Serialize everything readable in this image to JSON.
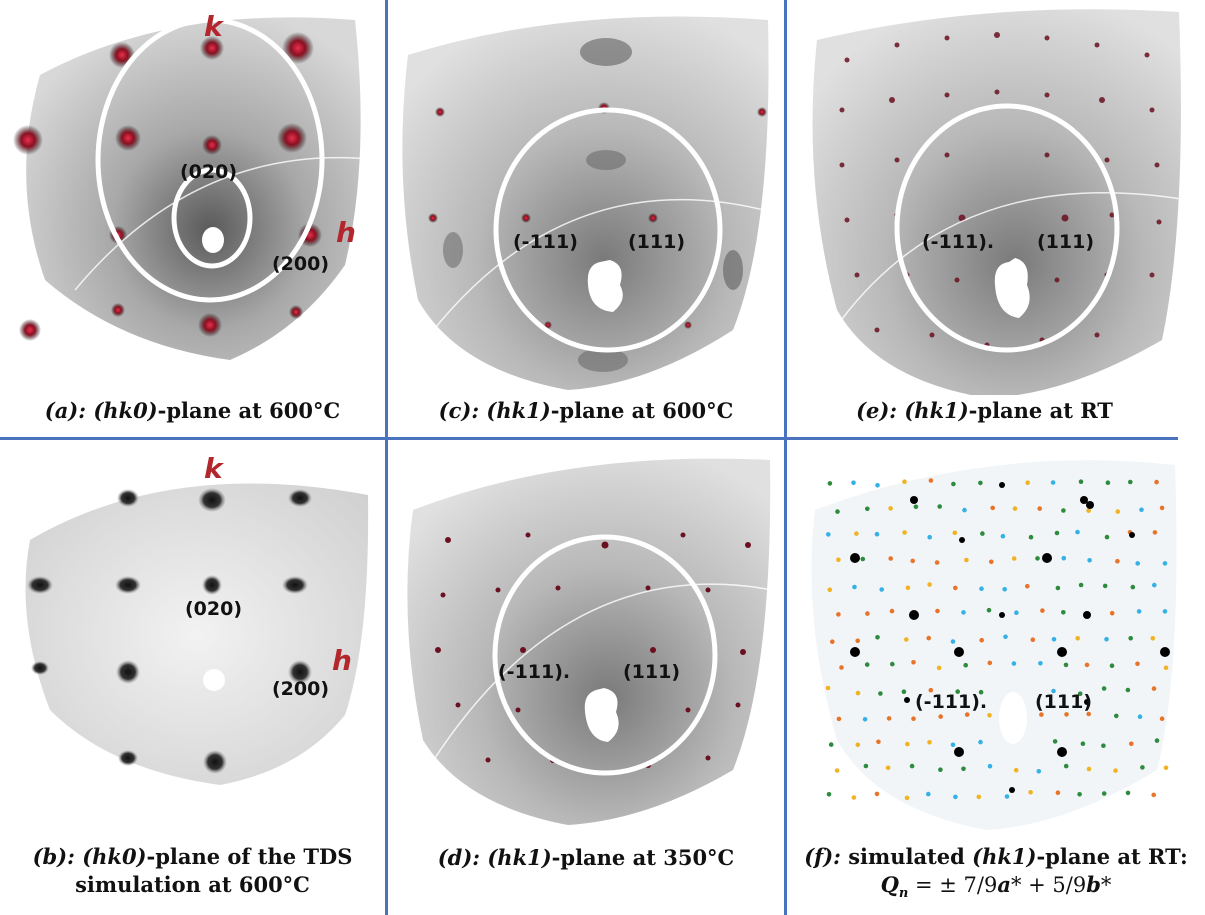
{
  "panels": {
    "a": {
      "caption_prefix": "(a): ",
      "caption_italic": "(hk0)",
      "caption_suffix": "-plane at 600°C",
      "labels": [
        "(020)",
        "(200)"
      ],
      "axis_k": "k",
      "axis_h": "h"
    },
    "b": {
      "caption_prefix": "(b): ",
      "caption_italic": "(hk0)",
      "caption_suffix": "-plane of the TDS",
      "caption_line2": "simulation at 600°C",
      "labels": [
        "(020)",
        "(200)"
      ],
      "axis_k": "k",
      "axis_h": "h"
    },
    "c": {
      "caption_prefix": "(c): ",
      "caption_italic": "(hk1)",
      "caption_suffix": "-plane at 600°C",
      "labels": [
        "(-111)",
        "(111)"
      ]
    },
    "d": {
      "caption_prefix": "(d): ",
      "caption_italic": "(hk1)",
      "caption_suffix": "-plane at 350°C",
      "labels": [
        "(-111).",
        "(111)"
      ]
    },
    "e": {
      "caption_prefix": "(e): ",
      "caption_italic": "(hk1)",
      "caption_suffix": "-plane at RT",
      "labels": [
        "(-111).",
        "(111)"
      ]
    },
    "f": {
      "caption_prefix": "(f): ",
      "caption_mid": "simulated ",
      "caption_italic": "(hk1)",
      "caption_suffix": "-plane at RT:",
      "formula_q": "Q",
      "formula_sub": "n",
      "formula_eq": " = ± 7/9",
      "formula_a": "a",
      "formula_mid": "* + 5/9",
      "formula_b": "b",
      "formula_end": "*",
      "labels": [
        "(-111).",
        "(111)"
      ]
    }
  },
  "colors": {
    "divider": "#4a73bd",
    "axis_label": "#b3262c",
    "spot_red": "#c21f3a",
    "sim_green": "#2e8b3e",
    "sim_orange": "#e8742a",
    "sim_blue": "#35b1e6",
    "sim_yellow": "#f0b323"
  }
}
